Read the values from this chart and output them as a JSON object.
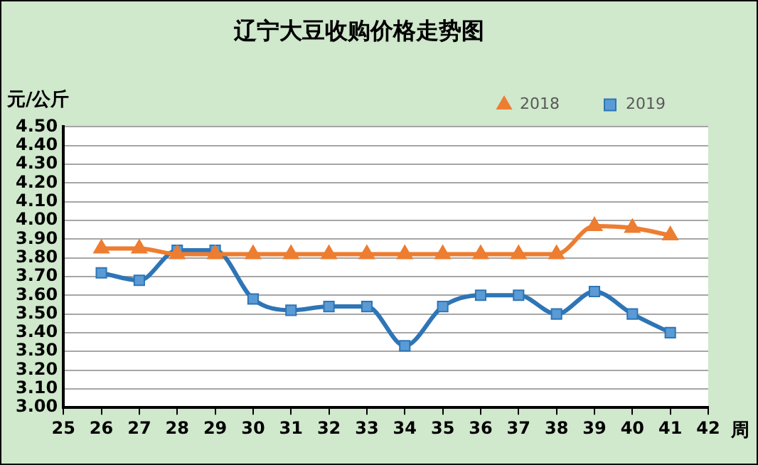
{
  "chart_data": {
    "type": "line",
    "title": "辽宁大豆收购价格走势图",
    "ylabel": "元/公斤",
    "xlabel": "周",
    "x": [
      26,
      27,
      28,
      29,
      30,
      31,
      32,
      33,
      34,
      35,
      36,
      37,
      38,
      39,
      40,
      41
    ],
    "series": [
      {
        "name": "2019",
        "color": "#2e75b6",
        "marker": "square",
        "values": [
          3.72,
          3.68,
          3.84,
          3.84,
          3.58,
          3.52,
          3.54,
          3.54,
          3.33,
          3.54,
          3.6,
          3.6,
          3.5,
          3.62,
          3.5,
          3.4
        ]
      },
      {
        "name": "2018",
        "color": "#ed7d31",
        "marker": "triangle",
        "values": [
          3.85,
          3.85,
          3.82,
          3.82,
          3.82,
          3.82,
          3.82,
          3.82,
          3.82,
          3.82,
          3.82,
          3.82,
          3.82,
          3.97,
          3.96,
          3.92
        ]
      }
    ],
    "xlim": [
      25,
      42
    ],
    "xticks": [
      25,
      26,
      27,
      28,
      29,
      30,
      31,
      32,
      33,
      34,
      35,
      36,
      37,
      38,
      39,
      40,
      41,
      42
    ],
    "ylim": [
      3,
      4.5
    ],
    "yticks": [
      {
        "value": 3,
        "label": "3.00"
      },
      {
        "value": 3.1,
        "label": "3.10"
      },
      {
        "value": 3.2,
        "label": "3.20"
      },
      {
        "value": 3.3,
        "label": "3.30"
      },
      {
        "value": 3.4,
        "label": "3.40"
      },
      {
        "value": 3.5,
        "label": "3.50"
      },
      {
        "value": 3.6,
        "label": "3.60"
      },
      {
        "value": 3.7,
        "label": "3.70"
      },
      {
        "value": 3.8,
        "label": "3.80"
      },
      {
        "value": 3.9,
        "label": "3.90"
      },
      {
        "value": 4,
        "label": "4.00"
      },
      {
        "value": 4.1,
        "label": "4.10"
      },
      {
        "value": 4.2,
        "label": "4.20"
      },
      {
        "value": 4.3,
        "label": "4.30"
      },
      {
        "value": 4.4,
        "label": "4.40"
      },
      {
        "value": 4.5,
        "label": "4.50"
      }
    ],
    "grid": "y",
    "legend": "top right",
    "line_style": "solid"
  }
}
